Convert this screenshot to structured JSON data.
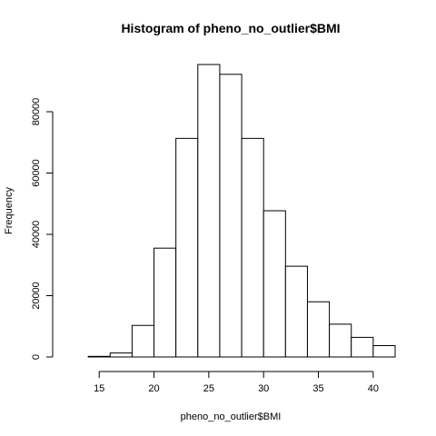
{
  "chart_data": {
    "type": "bar",
    "title": "Histogram of pheno_no_outlier$BMI",
    "xlabel": "pheno_no_outlier$BMI",
    "ylabel": "Frequency",
    "bins": [
      {
        "start": 12,
        "end": 14,
        "value": 0
      },
      {
        "start": 14,
        "end": 16,
        "value": 200
      },
      {
        "start": 16,
        "end": 18,
        "value": 1300
      },
      {
        "start": 18,
        "end": 20,
        "value": 10300
      },
      {
        "start": 20,
        "end": 22,
        "value": 35500
      },
      {
        "start": 22,
        "end": 24,
        "value": 71300
      },
      {
        "start": 24,
        "end": 26,
        "value": 95400
      },
      {
        "start": 26,
        "end": 28,
        "value": 92200
      },
      {
        "start": 28,
        "end": 30,
        "value": 71300
      },
      {
        "start": 30,
        "end": 32,
        "value": 47700
      },
      {
        "start": 32,
        "end": 34,
        "value": 29600
      },
      {
        "start": 34,
        "end": 36,
        "value": 18000
      },
      {
        "start": 36,
        "end": 38,
        "value": 10700
      },
      {
        "start": 38,
        "end": 40,
        "value": 6400
      },
      {
        "start": 40,
        "end": 42,
        "value": 3700
      }
    ],
    "xlim": [
      12,
      42
    ],
    "ylim": [
      0,
      100000
    ],
    "xticks": [
      15,
      20,
      25,
      30,
      35,
      40
    ],
    "yticks": [
      0,
      20000,
      40000,
      60000,
      80000
    ],
    "grid": false,
    "legend": "none"
  }
}
